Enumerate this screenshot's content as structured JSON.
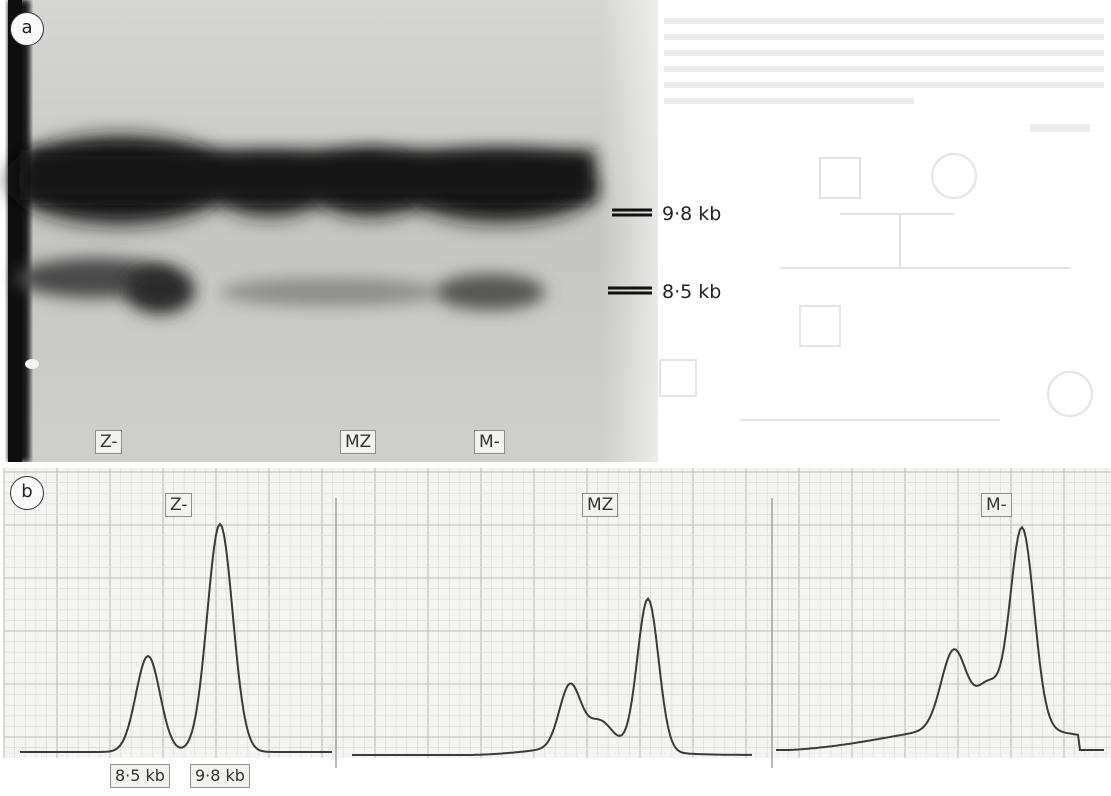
{
  "panel_a": {
    "label": "a",
    "lanes": [
      "Z-",
      "MZ",
      "M-"
    ],
    "markers": [
      "9·8 kb",
      "8·5 kb"
    ]
  },
  "panel_b": {
    "label": "b",
    "traces": [
      "Z-",
      "MZ",
      "M-"
    ],
    "peak_labels": [
      "8·5 kb",
      "9·8 kb"
    ]
  },
  "colors": {
    "gel_background": "#c4c4c0",
    "band": "#161616",
    "grid_fine": "#d7d7d4",
    "grid_major": "#b8b8b4",
    "trace": "#3a3a3a"
  }
}
